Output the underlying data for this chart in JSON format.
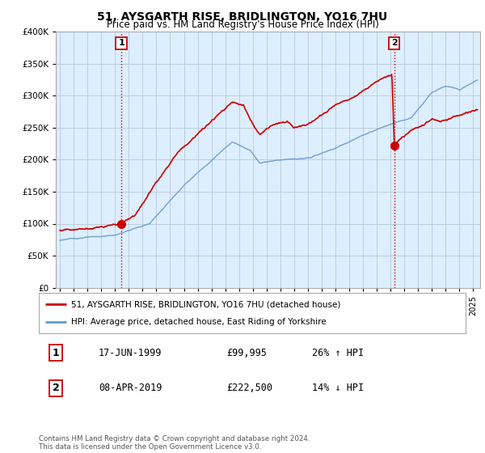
{
  "title1": "51, AYSGARTH RISE, BRIDLINGTON, YO16 7HU",
  "title2": "Price paid vs. HM Land Registry's House Price Index (HPI)",
  "legend_line1": "51, AYSGARTH RISE, BRIDLINGTON, YO16 7HU (detached house)",
  "legend_line2": "HPI: Average price, detached house, East Riding of Yorkshire",
  "footer": "Contains HM Land Registry data © Crown copyright and database right 2024.\nThis data is licensed under the Open Government Licence v3.0.",
  "sale1_date": "17-JUN-1999",
  "sale1_price": "£99,995",
  "sale1_hpi": "26% ↑ HPI",
  "sale2_date": "08-APR-2019",
  "sale2_price": "£222,500",
  "sale2_hpi": "14% ↓ HPI",
  "red_color": "#cc0000",
  "blue_color": "#6699cc",
  "vline_color": "#cc0000",
  "grid_color": "#bbccdd",
  "bg_color": "#ffffff",
  "chart_bg": "#ddeeff",
  "sale1_year": 1999.46,
  "sale2_year": 2019.27,
  "sale1_price_val": 99995,
  "sale2_price_val": 222500,
  "ylim_min": 0,
  "ylim_max": 400000,
  "xlim_min": 1994.7,
  "xlim_max": 2025.5
}
